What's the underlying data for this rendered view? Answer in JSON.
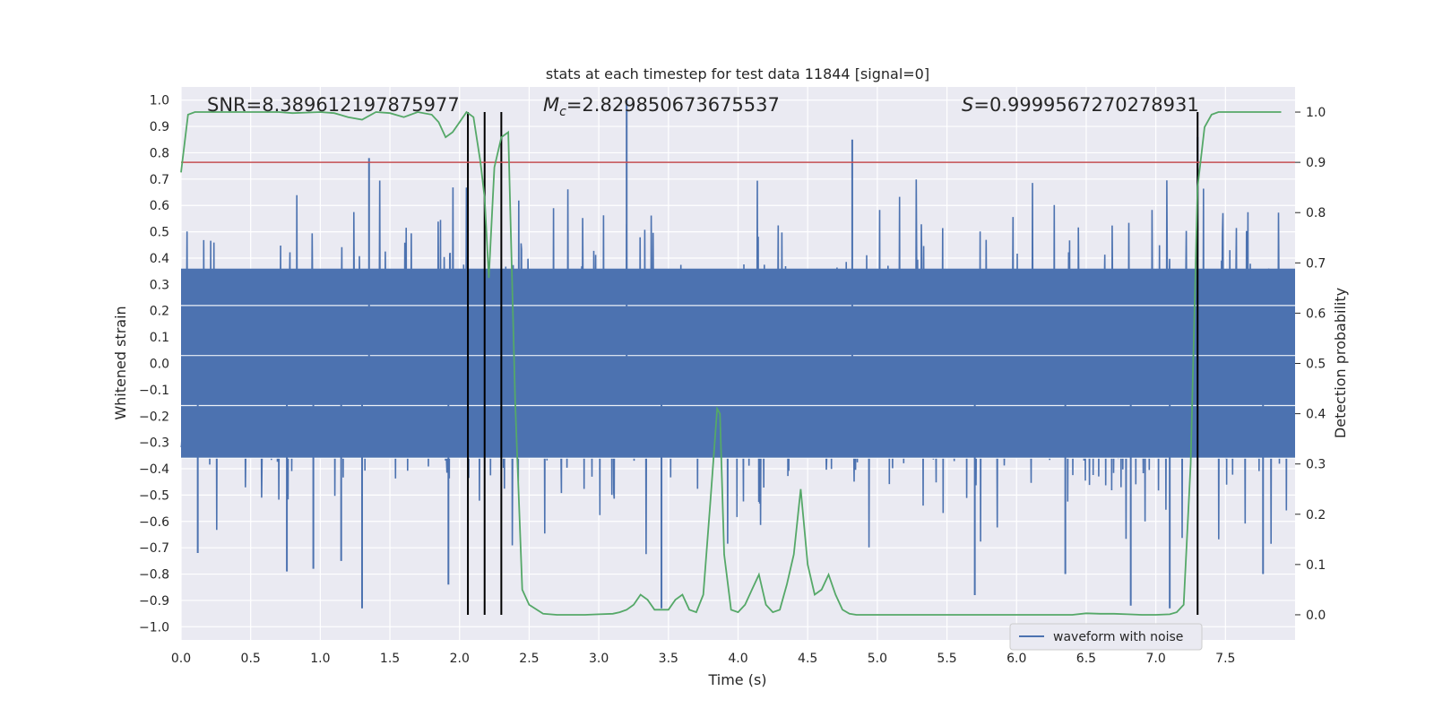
{
  "chart_data": {
    "type": "line",
    "title": "stats at each timestep for test data 11844 [signal=0]",
    "xlabel": "Time (s)",
    "ylabel_left": "Whitened strain",
    "ylabel_right": "Detection probability",
    "xlim": [
      0.0,
      8.0
    ],
    "ylim_left": [
      -1.05,
      1.05
    ],
    "ylim_right": [
      -0.05,
      1.05
    ],
    "x_ticks": [
      "0.0",
      "0.5",
      "1.0",
      "1.5",
      "2.0",
      "2.5",
      "3.0",
      "3.5",
      "4.0",
      "4.5",
      "5.0",
      "5.5",
      "6.0",
      "6.5",
      "7.0",
      "7.5"
    ],
    "y_ticks_left": [
      "1.0",
      "0.9",
      "0.8",
      "0.7",
      "0.6",
      "0.5",
      "0.4",
      "0.3",
      "0.2",
      "0.1",
      "0.0",
      "−0.1",
      "−0.2",
      "−0.3",
      "−0.4",
      "−0.5",
      "−0.6",
      "−0.7",
      "−0.8",
      "−0.9",
      "−1.0"
    ],
    "y_ticks_right": [
      "1.0",
      "0.9",
      "0.8",
      "0.7",
      "0.6",
      "0.5",
      "0.4",
      "0.3",
      "0.2",
      "0.1",
      "0.0"
    ],
    "annotations": {
      "snr": "SNR=8.389612197875977",
      "mc_symbol": "M",
      "mc_sub": "c",
      "mc_value": "=2.829850673675537",
      "s_symbol": "S",
      "s_value": "=0.9999567270278931"
    },
    "legend": [
      "waveform with noise"
    ],
    "threshold_line": {
      "axis": "right",
      "value": 0.9,
      "color": "#c44e52"
    },
    "vertical_lines_x": [
      2.06,
      2.18,
      2.3,
      7.3
    ],
    "series": [
      {
        "name": "waveform with noise",
        "axis": "left",
        "color": "#4c72b0",
        "envelope": "dense noise, core roughly -0.4..0.4, spikes up to 1.0 and down to -0.93",
        "spikes": [
          {
            "x": 1.3,
            "y": -0.93
          },
          {
            "x": 1.35,
            "y": 0.78
          },
          {
            "x": 0.76,
            "y": -0.79
          },
          {
            "x": 3.2,
            "y": 1.0
          },
          {
            "x": 3.45,
            "y": -0.93
          },
          {
            "x": 4.82,
            "y": 0.85
          },
          {
            "x": 7.3,
            "y": 0.86
          },
          {
            "x": 7.1,
            "y": -0.93
          },
          {
            "x": 6.82,
            "y": -0.92
          },
          {
            "x": 5.7,
            "y": -0.88
          },
          {
            "x": 6.35,
            "y": -0.8
          },
          {
            "x": 7.77,
            "y": -0.8
          },
          {
            "x": 1.92,
            "y": -0.84
          },
          {
            "x": 1.15,
            "y": -0.75
          },
          {
            "x": 0.12,
            "y": -0.72
          },
          {
            "x": 0.95,
            "y": -0.78
          }
        ]
      },
      {
        "name": "detection probability",
        "axis": "right",
        "color": "#55a868",
        "x": [
          0.0,
          0.05,
          0.1,
          0.2,
          0.3,
          0.4,
          0.5,
          0.6,
          0.7,
          0.8,
          0.9,
          1.0,
          1.1,
          1.2,
          1.3,
          1.4,
          1.5,
          1.6,
          1.7,
          1.8,
          1.85,
          1.9,
          1.95,
          2.0,
          2.05,
          2.1,
          2.15,
          2.18,
          2.21,
          2.25,
          2.3,
          2.35,
          2.4,
          2.45,
          2.5,
          2.6,
          2.7,
          2.8,
          2.9,
          3.0,
          3.1,
          3.15,
          3.2,
          3.25,
          3.3,
          3.35,
          3.4,
          3.45,
          3.5,
          3.55,
          3.6,
          3.65,
          3.7,
          3.75,
          3.8,
          3.85,
          3.87,
          3.9,
          3.95,
          4.0,
          4.05,
          4.1,
          4.15,
          4.2,
          4.25,
          4.3,
          4.35,
          4.4,
          4.45,
          4.5,
          4.55,
          4.6,
          4.65,
          4.7,
          4.75,
          4.8,
          4.85,
          4.9,
          5.0,
          5.5,
          6.0,
          6.4,
          6.5,
          6.6,
          6.7,
          6.8,
          6.9,
          7.0,
          7.1,
          7.15,
          7.2,
          7.25,
          7.3,
          7.35,
          7.4,
          7.45,
          7.5,
          7.6,
          7.7,
          7.9
        ],
        "y": [
          0.88,
          0.995,
          1.0,
          1.0,
          1.0,
          1.0,
          1.0,
          1.0,
          1.0,
          0.998,
          0.999,
          1.0,
          0.998,
          0.99,
          0.985,
          1.0,
          0.998,
          0.99,
          1.0,
          0.995,
          0.98,
          0.95,
          0.96,
          0.98,
          1.0,
          0.99,
          0.9,
          0.83,
          0.67,
          0.89,
          0.95,
          0.96,
          0.42,
          0.05,
          0.02,
          0.002,
          0.0,
          0.0,
          0.0,
          0.001,
          0.002,
          0.005,
          0.01,
          0.02,
          0.04,
          0.03,
          0.01,
          0.01,
          0.01,
          0.03,
          0.04,
          0.01,
          0.005,
          0.04,
          0.22,
          0.41,
          0.4,
          0.12,
          0.01,
          0.005,
          0.02,
          0.05,
          0.08,
          0.02,
          0.005,
          0.01,
          0.06,
          0.12,
          0.25,
          0.1,
          0.04,
          0.05,
          0.08,
          0.04,
          0.01,
          0.002,
          0.0,
          0.0,
          0.0,
          0.0,
          0.0,
          0.0,
          0.003,
          0.002,
          0.002,
          0.001,
          0.0,
          0.0,
          0.001,
          0.005,
          0.02,
          0.3,
          0.85,
          0.97,
          0.995,
          1.0,
          1.0,
          1.0,
          1.0,
          1.0
        ]
      }
    ]
  }
}
